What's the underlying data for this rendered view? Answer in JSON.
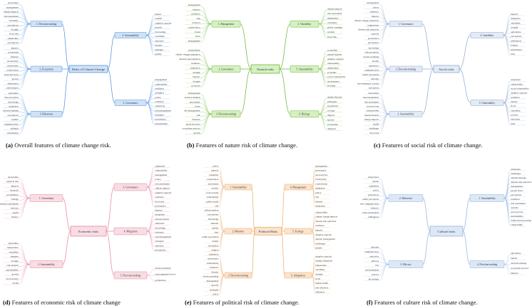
{
  "panels": [
    {
      "id": "a",
      "caption_tag": "(a)",
      "caption_text": "Overall features of climate change risk.",
      "center": "Risks of Climate Change",
      "color": "#4a8ed8",
      "fill": "#cfe2f7",
      "branches": [
        {
          "label": "1. Decision-making",
          "side": "left",
          "leaves": [
            "uncertainty",
            "management",
            "climate impacts",
            "risk assessment",
            "variability",
            "perceptions",
            "drought",
            "flood risk",
            "stakeholder",
            "perceptions"
          ]
        },
        {
          "label": "2. Ecosystem",
          "side": "left",
          "leaves": [
            "impacts",
            "ecosystems",
            "fisheries",
            "biodiversity",
            "biodiversity",
            "conservation",
            "protected areas",
            "species",
            "disturbance",
            "performance"
          ]
        },
        {
          "label": "3. Behaviour",
          "side": "left",
          "leaves": [
            "agriculture",
            "risk perception",
            "knowledge",
            "adaptation",
            "decision-making",
            "perceptions",
            "weather",
            "communication",
            "attitudes",
            "information"
          ]
        },
        {
          "label": "4. Sustainability",
          "side": "right",
          "leaves": [
            "impact",
            "rainfall",
            "adaptive capacity",
            "models",
            "forecasting",
            "variability",
            "exposure",
            "hazards",
            "damages",
            "quality"
          ]
        },
        {
          "label": "5. Governance",
          "side": "right",
          "leaves": [
            "management",
            "vulnerability",
            "resilience",
            "dynamics",
            "policy",
            "resilience",
            "adaptation",
            "risk management",
            "strategies",
            "governance",
            "sustainability"
          ]
        }
      ]
    },
    {
      "id": "b",
      "caption_tag": "(b)",
      "caption_text": "Features of nature risk of climate change.",
      "center": "Natural risks",
      "color": "#62b52e",
      "fill": "#d6f0c2",
      "branches": [
        {
          "label": "1. Management",
          "side": "left",
          "leaves": [
            "management",
            "impacts",
            "resilience",
            "risk",
            "variation",
            "conservation",
            "forest",
            "areas",
            "management"
          ]
        },
        {
          "label": "2. Governance",
          "side": "left",
          "leaves": [
            "vulnerability",
            "climate change adaptation",
            "disaster risk reduction",
            "resilience",
            "adaptation",
            "drought",
            "impacts",
            "drought",
            "protected"
          ]
        },
        {
          "label": "3. Decision-making",
          "side": "left",
          "leaves": [
            "management",
            "decision-making",
            "uncertainty",
            "forest",
            "fire management",
            "risk",
            "fisheries",
            "protected areas",
            "ecosystem services",
            "growth"
          ]
        },
        {
          "label": "4. Variability",
          "side": "right",
          "leaves": [
            "climate impacts",
            "risk assessment",
            "temperature",
            "variability",
            "global warming",
            "weather",
            "flood risk"
          ]
        },
        {
          "label": "5. Sustainability",
          "side": "right",
          "leaves": [
            "ecosystem",
            "natural hazards",
            "adaptive capacity",
            "vulnerability",
            "temperature",
            "economic",
            "social vulnerability",
            "environment",
            "flooding"
          ]
        },
        {
          "label": "6. Biology",
          "side": "right",
          "leaves": [
            "animal diseases",
            "pathogens",
            "populations",
            "ecology",
            "impacts",
            "species",
            "ecosystems",
            "dispersal"
          ]
        }
      ]
    },
    {
      "id": "c",
      "caption_tag": "(c)",
      "caption_text": "Features of social risk of climate change.",
      "center": "Social risks",
      "color": "#8aa6cc",
      "fill": "#e3ebf6",
      "branches": [
        {
          "label": "1. Governance",
          "side": "left",
          "leaves": [
            "management",
            "policy",
            "resilience",
            "impacts",
            "climate change adaptation",
            "temperature",
            "disaster risk reduction",
            "capacity",
            "governance",
            "perceptions"
          ]
        },
        {
          "label": "2. Decision-making",
          "side": "left",
          "leaves": [
            "knowledge",
            "risk perception",
            "decision making",
            "models",
            "experience",
            "communication",
            "public perception",
            "attitudes",
            "environmental concern",
            "perception"
          ]
        },
        {
          "label": "3. Sustainability",
          "side": "left",
          "leaves": [
            "uncertainty",
            "risk management",
            "risk assessment",
            "sea level rise",
            "sustainability",
            "natural hazards",
            "change impacts",
            "health",
            "challenges",
            "flood risk"
          ]
        },
        {
          "label": "4. Variability",
          "side": "right",
          "leaves": [
            "impacts",
            "mitigation",
            "variability",
            "drought",
            "agriculture",
            "perceptions",
            "preferences",
            "farmers",
            "information",
            "trust"
          ]
        },
        {
          "label": "5. Vulnerability",
          "side": "right",
          "leaves": [
            "adaptation",
            "vulnerability",
            "social vulnerability",
            "adaptive capacity",
            "resilience",
            "disease",
            "flood",
            "variability",
            "poverty",
            "education",
            "risks"
          ]
        }
      ]
    },
    {
      "id": "d",
      "caption_tag": "(d)",
      "caption_text": "Features of economic risk of climate change",
      "center": "Economic risks",
      "color": "#e0829a",
      "fill": "#f9dde4",
      "branches": [
        {
          "label": "1. Uncertainty",
          "side": "left",
          "leaves": [
            "uncertainty",
            "physical risk",
            "impacts",
            "financial",
            "probabilities",
            "damage",
            "integrated assessment",
            "land use",
            "capital",
            "finance"
          ]
        },
        {
          "label": "2. Sustainability",
          "side": "left",
          "leaves": [
            "agriculture",
            "temperature",
            "variability",
            "damages",
            "drought",
            "risk analysis",
            "sustainability",
            "growth",
            "food security",
            "model"
          ]
        },
        {
          "label": "3. Governance",
          "side": "right",
          "leaves": [
            "adaptation",
            "vulnerability",
            "management",
            "policy",
            "risk assessment",
            "climate impacts",
            "adaptive capacity",
            "resilience",
            "flood risk",
            "governance"
          ]
        },
        {
          "label": "4. Mitigation",
          "side": "right",
          "leaves": [
            "impacts",
            "mitigation",
            "risk perception",
            "emissions",
            "knowledge",
            "insurance",
            "risk management",
            "strategies",
            "exposure",
            "perceptions"
          ]
        },
        {
          "label": "5. Decision-making",
          "side": "right",
          "leaves": [
            "decision-making",
            "environmental factors",
            "preferences"
          ]
        }
      ]
    },
    {
      "id": "e",
      "caption_tag": "(e)",
      "caption_text": "Features of political risk of climate change.",
      "center": "Political Risks",
      "color": "#f0a868",
      "fill": "#fbe3cc",
      "branches": [
        {
          "label": "1. Sustainability",
          "side": "left",
          "leaves": [
            "policy",
            "impacts",
            "variability",
            "conservation",
            "uncertainty",
            "politics",
            "food security",
            "vulnerability",
            "public health",
            "risk"
          ]
        },
        {
          "label": "2. Behavior",
          "side": "left",
          "leaves": [
            "risk perception",
            "perceptions",
            "knowledge",
            "attitudes",
            "gender",
            "trust",
            "public perception",
            "beliefs",
            "perception",
            "religion"
          ]
        },
        {
          "label": "3. Decision-making",
          "side": "left",
          "leaves": [
            "adaptation",
            "governance",
            "vulnerability",
            "resilience",
            "disaster",
            "decision-making",
            "management",
            "capacity",
            "strategies",
            "policy"
          ]
        },
        {
          "label": "4. Management",
          "side": "right",
          "leaves": [
            "management",
            "governance",
            "sea level rise",
            "biodiversity",
            "conservation",
            "mitigation",
            "policy",
            "risk",
            "disaster",
            "adaptation"
          ]
        },
        {
          "label": "5. Ecology",
          "side": "right",
          "leaves": [
            "vulnerability",
            "climate change impacts",
            "disaster risk reduction",
            "resilience",
            "impacts",
            "adaptive capacity",
            "disaster management",
            "challenges",
            "models"
          ]
        },
        {
          "label": "6. Adaptation",
          "side": "right",
          "leaves": [
            "adaptive capacity",
            "change adaptation",
            "temperature",
            "variability",
            "drought",
            "flood",
            "human health",
            "risk reduction",
            "efficiency"
          ]
        }
      ]
    },
    {
      "id": "f",
      "caption_tag": "(f)",
      "caption_text": "Features of culture risk of climate change.",
      "center": "Cultural risks",
      "color": "#8fb0dc",
      "fill": "#dde8f6",
      "branches": [
        {
          "label": "2. Behaviors",
          "side": "left",
          "leaves": [
            "importance",
            "gender",
            "adaptation",
            "policy",
            "preferences",
            "public perception",
            "risk communication",
            "behavior",
            "value orientations",
            "willingness"
          ]
        },
        {
          "label": "3. Efficacy",
          "side": "left",
          "leaves": [
            "attitudes",
            "communication",
            "education",
            "efficacy",
            "risk",
            "environmental",
            "literacy",
            "knowledge"
          ]
        },
        {
          "label": "1. Sustainability",
          "side": "right",
          "leaves": [
            "adaptation",
            "challenges",
            "cultural heritage",
            "disaster risk reduction",
            "management",
            "people flows",
            "perceptions",
            "resilience",
            "risk assessment",
            "systems",
            "sea level rise",
            "sustainability",
            "traditional knowledge",
            "vulnerability"
          ]
        },
        {
          "label": "4. Decision-making",
          "side": "right",
          "leaves": [
            "agriculture",
            "beliefs",
            "decision-making",
            "ecosystem services",
            "impacts"
          ]
        }
      ]
    }
  ]
}
